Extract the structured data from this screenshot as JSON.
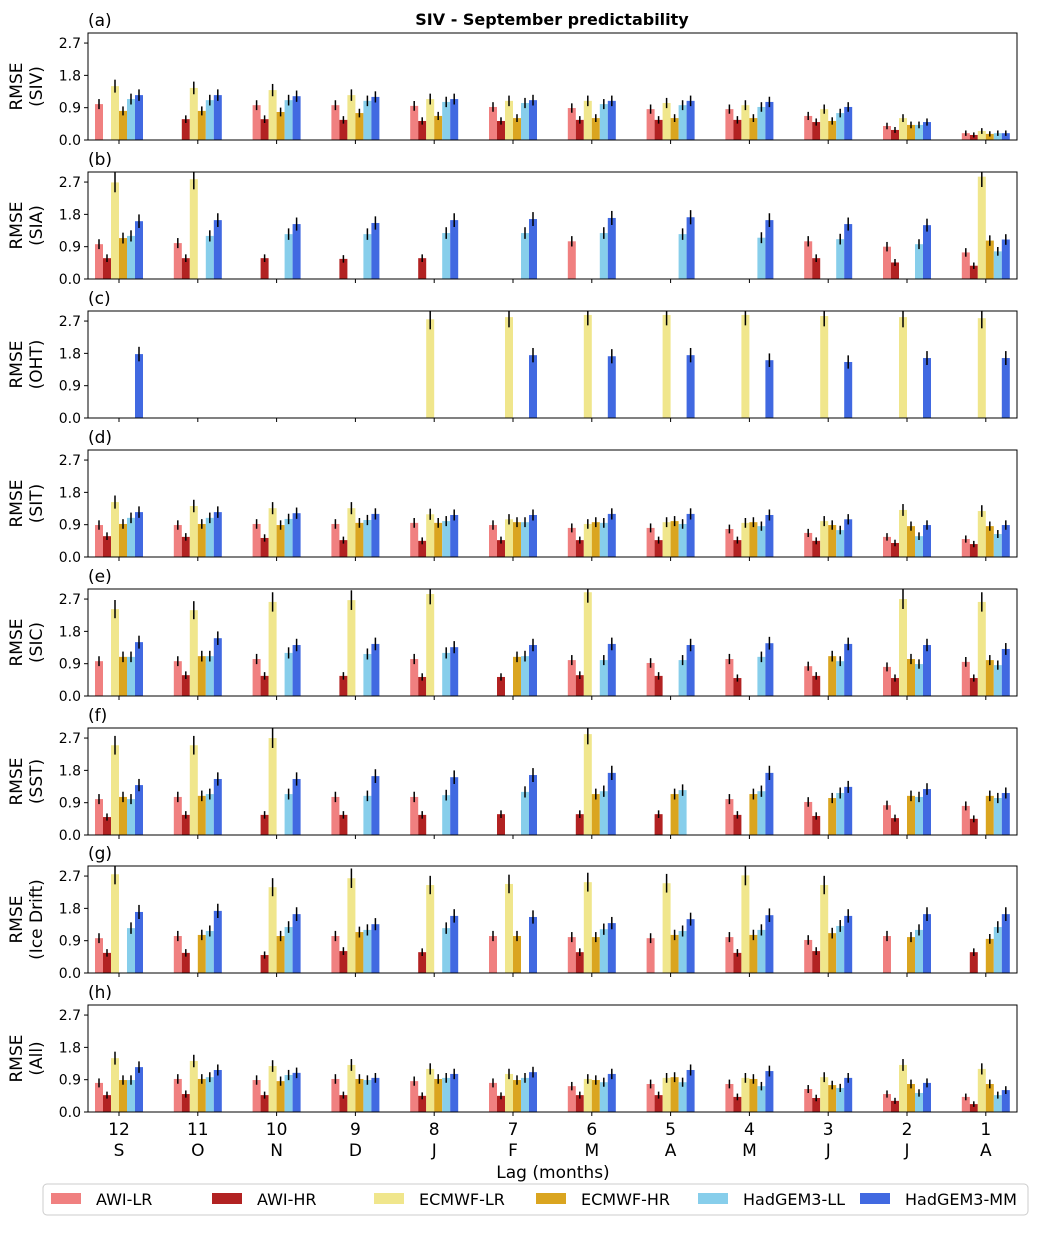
{
  "chart_data": {
    "type": "bar",
    "title": "SIV - September predictability",
    "xlabel": "Lag (months)",
    "categories": [
      "12",
      "11",
      "10",
      "9",
      "8",
      "7",
      "6",
      "5",
      "4",
      "3",
      "2",
      "1"
    ],
    "category_months": [
      "S",
      "O",
      "N",
      "D",
      "J",
      "F",
      "M",
      "A",
      "M",
      "J",
      "J",
      "A"
    ],
    "ylim": [
      0,
      2.98
    ],
    "yticks": [
      "0.0",
      "0.9",
      "1.8",
      "2.7"
    ],
    "ytick_values": [
      0,
      0.9,
      1.8,
      2.7
    ],
    "legend_position": "bottom",
    "series_names": [
      "AWI-LR",
      "AWI-HR",
      "ECMWF-LR",
      "ECMWF-HR",
      "HadGEM3-LL",
      "HadGEM3-MM"
    ],
    "colors": [
      "#f08080",
      "#b22222",
      "#f0e68c",
      "#daa520",
      "#87ceeb",
      "#4169e1"
    ],
    "panels": [
      {
        "label": "(a)",
        "ylabel": [
          "RMSE",
          "(SIV)"
        ],
        "series": [
          [
            1.0,
            null,
            0.97,
            0.97,
            0.95,
            0.92,
            0.89,
            0.86,
            0.86,
            0.67,
            0.39,
            0.19
          ],
          [
            null,
            0.58,
            0.58,
            0.56,
            0.53,
            0.53,
            0.56,
            0.56,
            0.56,
            0.5,
            0.28,
            0.14
          ],
          [
            1.5,
            1.45,
            1.39,
            1.25,
            1.14,
            1.09,
            1.09,
            1.03,
            0.97,
            0.86,
            0.61,
            0.25
          ],
          [
            0.81,
            0.81,
            0.78,
            0.75,
            0.67,
            0.61,
            0.61,
            0.61,
            0.61,
            0.53,
            0.42,
            0.17
          ],
          [
            1.14,
            1.11,
            1.11,
            1.09,
            1.06,
            1.03,
            1.0,
            0.97,
            0.92,
            0.75,
            0.42,
            0.19
          ],
          [
            1.25,
            1.25,
            1.22,
            1.2,
            1.14,
            1.11,
            1.09,
            1.09,
            1.06,
            0.92,
            0.5,
            0.19
          ]
        ]
      },
      {
        "label": "(b)",
        "ylabel": [
          "RMSE",
          "(SIA)"
        ],
        "series": [
          [
            0.97,
            1.0,
            null,
            null,
            null,
            null,
            1.05,
            null,
            null,
            1.05,
            0.9,
            0.74
          ],
          [
            0.58,
            0.58,
            0.58,
            0.56,
            0.58,
            null,
            null,
            null,
            null,
            0.58,
            0.46,
            0.37
          ],
          [
            2.69,
            2.78,
            null,
            null,
            null,
            null,
            null,
            null,
            null,
            null,
            null,
            2.85
          ],
          [
            1.14,
            null,
            null,
            null,
            null,
            null,
            null,
            null,
            null,
            null,
            null,
            1.07
          ],
          [
            1.2,
            1.2,
            1.25,
            1.25,
            1.28,
            1.28,
            1.28,
            1.25,
            1.15,
            1.11,
            0.97,
            0.77
          ],
          [
            1.61,
            1.64,
            1.53,
            1.56,
            1.64,
            1.67,
            1.7,
            1.72,
            1.64,
            1.53,
            1.5,
            1.1
          ]
        ]
      },
      {
        "label": "(c)",
        "ylabel": [
          "RMSE",
          "(OHT)"
        ],
        "series": [
          [
            null,
            null,
            null,
            null,
            null,
            null,
            null,
            null,
            null,
            null,
            null,
            null
          ],
          [
            null,
            null,
            null,
            null,
            null,
            null,
            null,
            null,
            null,
            null,
            null,
            null
          ],
          [
            null,
            null,
            null,
            null,
            2.75,
            2.81,
            2.87,
            2.87,
            2.87,
            2.84,
            2.81,
            2.78
          ],
          [
            null,
            null,
            null,
            null,
            null,
            null,
            null,
            null,
            null,
            null,
            null,
            null
          ],
          [
            null,
            null,
            null,
            null,
            null,
            null,
            null,
            null,
            null,
            null,
            null,
            null
          ],
          [
            1.78,
            null,
            null,
            null,
            null,
            1.75,
            1.72,
            1.75,
            1.61,
            1.56,
            1.67,
            1.67
          ]
        ]
      },
      {
        "label": "(d)",
        "ylabel": [
          "RMSE",
          "(SIT)"
        ],
        "series": [
          [
            0.89,
            0.89,
            0.92,
            0.92,
            0.95,
            0.89,
            0.81,
            0.81,
            0.78,
            0.67,
            0.56,
            0.5
          ],
          [
            0.58,
            0.56,
            0.53,
            0.47,
            0.45,
            0.47,
            0.47,
            0.47,
            0.47,
            0.45,
            0.39,
            0.36
          ],
          [
            1.53,
            1.42,
            1.36,
            1.36,
            1.19,
            1.05,
            0.92,
            0.97,
            0.95,
            1.0,
            1.31,
            1.28
          ],
          [
            0.92,
            0.92,
            0.89,
            0.95,
            0.95,
            0.97,
            0.97,
            1.0,
            0.97,
            0.89,
            0.86,
            0.86
          ],
          [
            1.09,
            1.09,
            1.06,
            1.03,
            1.0,
            0.97,
            0.95,
            0.92,
            0.86,
            0.75,
            0.58,
            0.64
          ],
          [
            1.25,
            1.25,
            1.22,
            1.2,
            1.17,
            1.17,
            1.2,
            1.2,
            1.17,
            1.05,
            0.89,
            0.89
          ]
        ]
      },
      {
        "label": "(e)",
        "ylabel": [
          "RMSE",
          "(SIC)"
        ],
        "series": [
          [
            0.97,
            0.97,
            1.03,
            null,
            1.03,
            null,
            1.0,
            0.92,
            1.03,
            0.83,
            0.81,
            0.95
          ],
          [
            null,
            0.58,
            0.56,
            0.56,
            0.53,
            0.53,
            0.58,
            0.56,
            0.5,
            0.56,
            0.5,
            0.5
          ],
          [
            2.42,
            2.39,
            2.62,
            2.67,
            2.84,
            null,
            2.89,
            null,
            null,
            null,
            2.7,
            2.62
          ],
          [
            1.09,
            1.11,
            null,
            null,
            null,
            1.09,
            null,
            null,
            null,
            1.11,
            1.03,
            1.0
          ],
          [
            1.09,
            1.11,
            1.2,
            1.17,
            1.2,
            1.11,
            1.0,
            1.0,
            1.09,
            0.97,
            0.89,
            0.86
          ],
          [
            1.5,
            1.61,
            1.42,
            1.45,
            1.36,
            1.42,
            1.45,
            1.42,
            1.47,
            1.45,
            1.42,
            1.31
          ]
        ]
      },
      {
        "label": "(f)",
        "ylabel": [
          "RMSE",
          "(SST)"
        ],
        "series": [
          [
            1.0,
            1.06,
            null,
            1.06,
            1.06,
            null,
            null,
            null,
            1.0,
            0.92,
            0.83,
            0.81
          ],
          [
            0.5,
            0.56,
            0.56,
            0.56,
            0.56,
            0.58,
            0.58,
            0.58,
            0.56,
            0.53,
            0.47,
            0.45
          ],
          [
            2.5,
            2.5,
            2.7,
            null,
            null,
            null,
            2.81,
            null,
            null,
            null,
            null,
            null
          ],
          [
            1.06,
            1.09,
            null,
            null,
            null,
            null,
            1.14,
            1.14,
            1.14,
            1.03,
            1.09,
            1.09
          ],
          [
            1.0,
            1.14,
            1.14,
            1.09,
            1.11,
            1.2,
            1.22,
            1.25,
            1.22,
            1.17,
            1.06,
            1.03
          ],
          [
            1.39,
            1.56,
            1.56,
            1.64,
            1.61,
            1.67,
            1.73,
            null,
            1.73,
            1.34,
            1.28,
            1.17
          ]
        ]
      },
      {
        "label": "(g)",
        "ylabel": [
          "RMSE",
          "(Ice Drift)"
        ],
        "series": [
          [
            0.97,
            1.03,
            null,
            1.03,
            null,
            1.03,
            1.0,
            0.97,
            1.0,
            0.92,
            1.03,
            null
          ],
          [
            0.56,
            0.56,
            0.5,
            0.61,
            0.58,
            null,
            0.58,
            null,
            0.56,
            0.61,
            null,
            0.58
          ],
          [
            2.75,
            null,
            2.39,
            2.64,
            2.45,
            2.48,
            2.53,
            2.5,
            2.72,
            2.45,
            null,
            null
          ],
          [
            null,
            1.06,
            1.03,
            1.14,
            null,
            1.03,
            1.0,
            1.06,
            1.06,
            1.11,
            1.0,
            0.95
          ],
          [
            1.25,
            1.17,
            1.28,
            1.2,
            1.25,
            null,
            1.22,
            1.17,
            1.2,
            1.31,
            1.2,
            1.28
          ],
          [
            1.7,
            1.73,
            1.64,
            1.36,
            1.59,
            1.56,
            1.39,
            1.5,
            1.61,
            1.59,
            1.64,
            1.64
          ]
        ]
      },
      {
        "label": "(h)",
        "ylabel": [
          "RMSE",
          "(All)"
        ],
        "series": [
          [
            0.81,
            0.92,
            0.89,
            0.92,
            0.86,
            0.81,
            0.72,
            0.78,
            0.78,
            0.64,
            0.5,
            0.42
          ],
          [
            0.47,
            0.5,
            0.47,
            0.47,
            0.45,
            0.45,
            0.47,
            0.47,
            0.42,
            0.39,
            0.31,
            0.22
          ],
          [
            1.5,
            1.42,
            1.28,
            1.31,
            1.2,
            1.06,
            0.92,
            0.95,
            0.95,
            0.97,
            1.31,
            1.2
          ],
          [
            0.89,
            0.92,
            0.86,
            0.92,
            0.92,
            0.89,
            0.89,
            0.97,
            0.92,
            0.75,
            0.78,
            0.78
          ],
          [
            0.89,
            0.97,
            1.03,
            0.89,
            0.95,
            0.95,
            0.83,
            0.83,
            0.72,
            0.67,
            0.53,
            0.47
          ],
          [
            1.25,
            1.17,
            1.09,
            0.95,
            1.06,
            1.11,
            1.06,
            1.17,
            1.14,
            0.95,
            0.81,
            0.61
          ]
        ]
      }
    ]
  }
}
